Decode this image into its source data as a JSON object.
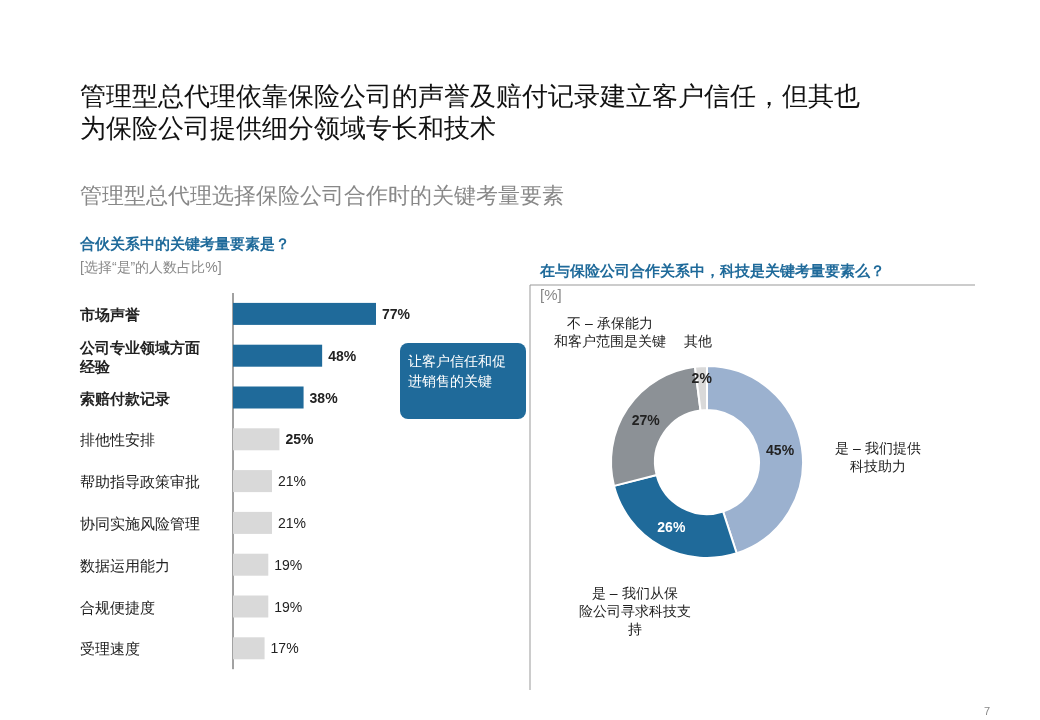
{
  "chart_data": [
    {
      "type": "bar",
      "orientation": "horizontal",
      "title": "合伙关系中的关键考量要素是？",
      "subtitle": "[选择“是”的人数占比%]",
      "categories": [
        "市场声誉",
        "公司专业领域方面经验",
        "索赔付款记录",
        "排他性安排",
        "帮助指导政策审批",
        "协同实施风险管理",
        "数据运用能力",
        "合规便捷度",
        "受理速度"
      ],
      "values": [
        77,
        48,
        38,
        25,
        21,
        21,
        19,
        19,
        17
      ],
      "value_labels": [
        "77%",
        "48%",
        "38%",
        "25%",
        "21%",
        "21%",
        "19%",
        "19%",
        "17%"
      ],
      "colors": [
        "#1f6a9a",
        "#1f6a9a",
        "#1f6a9a",
        "#d9d9d9",
        "#d9d9d9",
        "#d9d9d9",
        "#d9d9d9",
        "#d9d9d9",
        "#d9d9d9"
      ],
      "annotations": [
        "管理型总代理依靠保险公司的声誉及赔付记录建立客户信任，但其也为保险公司提供细分领域专长和技术",
        "管理型总代理选择保险公司合作时的关键考量要素",
        "让客户信任和促进销售的关键"
      ]
    },
    {
      "type": "donut",
      "title": "在与保险公司合作关系中，科技是关键考量要素么？",
      "subtitle": "[%]",
      "categories": [
        "是 – 我们提供科技助力",
        "是 – 我们从保险公司寻求科技支持",
        "不 – 承保能力和客户范围是关键",
        "其他"
      ],
      "values": [
        45,
        26,
        27,
        2
      ],
      "value_labels": [
        "45%",
        "26%",
        "27%",
        "2%"
      ],
      "colors": [
        "#9bb1cf",
        "#1f6a9a",
        "#8c9196",
        "#d9d9d9"
      ],
      "annotations": [
        "7"
      ]
    }
  ]
}
